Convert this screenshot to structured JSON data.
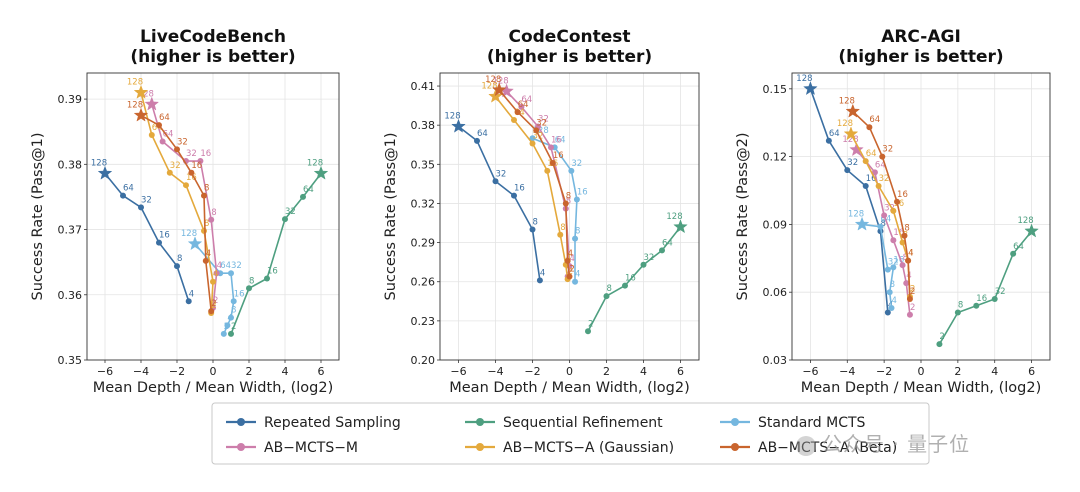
{
  "colors": {
    "repeated": "#3b6fa2",
    "sequential": "#4e9f80",
    "standard": "#75b7df",
    "abm": "#cd7eab",
    "aba_gauss": "#e4a93c",
    "aba_beta": "#c9652e"
  },
  "legend": [
    {
      "key": "repeated",
      "label": "Repeated Sampling"
    },
    {
      "key": "sequential",
      "label": "Sequential Refinement"
    },
    {
      "key": "standard",
      "label": "Standard MCTS"
    },
    {
      "key": "abm",
      "label": "AB−MCTS−M"
    },
    {
      "key": "aba_gauss",
      "label": "AB−MCTS−A (Gaussian)"
    },
    {
      "key": "aba_beta",
      "label": "AB−MCTS−A (Beta)"
    }
  ],
  "watermark": "公众号 · 量子位",
  "chart_data": [
    {
      "type": "line",
      "title": "LiveCodeBench",
      "subtitle": "(higher is better)",
      "xlabel": "Mean Depth / Mean Width, (log2)",
      "ylabel": "Success Rate (Pass@1)",
      "xlim": [
        -7,
        7
      ],
      "ylim": [
        0.35,
        0.394
      ],
      "xticks": [
        -6,
        -4,
        -2,
        0,
        2,
        4,
        6
      ],
      "yticks": [
        0.35,
        0.36,
        0.37,
        0.38,
        0.39
      ],
      "ytick_labels": [
        "0.35",
        "0.36",
        "0.37",
        "0.38",
        "0.39"
      ],
      "series": [
        {
          "key": "repeated",
          "points": [
            {
              "x": -6.0,
              "y": 0.3786,
              "label": "128",
              "star": true
            },
            {
              "x": -5.0,
              "y": 0.3752,
              "label": "64"
            },
            {
              "x": -4.0,
              "y": 0.3734,
              "label": "32"
            },
            {
              "x": -3.0,
              "y": 0.368,
              "label": "16"
            },
            {
              "x": -2.0,
              "y": 0.3644,
              "label": "8"
            },
            {
              "x": -1.35,
              "y": 0.359,
              "label": "4"
            }
          ]
        },
        {
          "key": "sequential",
          "points": [
            {
              "x": 1.0,
              "y": 0.354,
              "label": "2"
            },
            {
              "x": 2.0,
              "y": 0.361,
              "label": "8"
            },
            {
              "x": 3.0,
              "y": 0.3625,
              "label": "16"
            },
            {
              "x": 4.0,
              "y": 0.3716,
              "label": "32"
            },
            {
              "x": 5.0,
              "y": 0.375,
              "label": "64"
            },
            {
              "x": 6.0,
              "y": 0.3786,
              "label": "128",
              "star": true
            }
          ]
        },
        {
          "key": "standard",
          "points": [
            {
              "x": -1.0,
              "y": 0.3678,
              "label": "128",
              "star": true
            },
            {
              "x": 0.4,
              "y": 0.3633,
              "label": "64"
            },
            {
              "x": 1.0,
              "y": 0.3633,
              "label": "32"
            },
            {
              "x": 1.15,
              "y": 0.359,
              "label": "16"
            },
            {
              "x": 1.0,
              "y": 0.3565,
              "label": "8"
            },
            {
              "x": 0.8,
              "y": 0.3553,
              "label": "4"
            },
            {
              "x": 0.6,
              "y": 0.354,
              "label": "2"
            }
          ]
        },
        {
          "key": "abm",
          "points": [
            {
              "x": -3.4,
              "y": 0.3892,
              "label": "128",
              "star": true
            },
            {
              "x": -2.8,
              "y": 0.3835,
              "label": "64"
            },
            {
              "x": -1.5,
              "y": 0.3805,
              "label": "32"
            },
            {
              "x": -0.7,
              "y": 0.3805,
              "label": "16"
            },
            {
              "x": -0.1,
              "y": 0.3715,
              "label": "8"
            },
            {
              "x": 0.2,
              "y": 0.3633,
              "label": "4"
            },
            {
              "x": 0.0,
              "y": 0.358,
              "label": "2"
            }
          ]
        },
        {
          "key": "aba_gauss",
          "points": [
            {
              "x": -4.0,
              "y": 0.391,
              "label": "128",
              "star": true
            },
            {
              "x": -3.4,
              "y": 0.3845,
              "label": "64"
            },
            {
              "x": -2.4,
              "y": 0.3787,
              "label": "32"
            },
            {
              "x": -1.5,
              "y": 0.3768,
              "label": "16"
            },
            {
              "x": -0.5,
              "y": 0.3698,
              "label": "8"
            },
            {
              "x": 0.0,
              "y": 0.362,
              "label": "4"
            },
            {
              "x": -0.1,
              "y": 0.3572,
              "label": "2"
            }
          ]
        },
        {
          "key": "aba_beta",
          "points": [
            {
              "x": -4.0,
              "y": 0.3875,
              "label": "128",
              "star": true
            },
            {
              "x": -3.0,
              "y": 0.386,
              "label": "64"
            },
            {
              "x": -2.0,
              "y": 0.3823,
              "label": "32"
            },
            {
              "x": -1.2,
              "y": 0.3787,
              "label": "16"
            },
            {
              "x": -0.5,
              "y": 0.3752,
              "label": "8"
            },
            {
              "x": -0.4,
              "y": 0.3652,
              "label": "4"
            },
            {
              "x": -0.1,
              "y": 0.3575,
              "label": "2"
            }
          ]
        }
      ]
    },
    {
      "type": "line",
      "title": "CodeContest",
      "subtitle": "(higher is better)",
      "xlabel": "Mean Depth / Mean Width, (log2)",
      "ylabel": "Success Rate (Pass@1)",
      "xlim": [
        -7,
        7
      ],
      "ylim": [
        0.2,
        0.42
      ],
      "xticks": [
        -6,
        -4,
        -2,
        0,
        2,
        4,
        6
      ],
      "yticks": [
        0.2,
        0.23,
        0.26,
        0.29,
        0.32,
        0.35,
        0.38,
        0.41
      ],
      "ytick_labels": [
        "0.20",
        "0.23",
        "0.26",
        "0.29",
        "0.32",
        "0.35",
        "0.38",
        "0.41"
      ],
      "series": [
        {
          "key": "repeated",
          "points": [
            {
              "x": -6.0,
              "y": 0.379,
              "label": "128",
              "star": true
            },
            {
              "x": -5.0,
              "y": 0.368,
              "label": "64"
            },
            {
              "x": -4.0,
              "y": 0.337,
              "label": "32"
            },
            {
              "x": -3.0,
              "y": 0.326,
              "label": "16"
            },
            {
              "x": -2.0,
              "y": 0.3,
              "label": "8"
            },
            {
              "x": -1.6,
              "y": 0.261,
              "label": "4"
            }
          ]
        },
        {
          "key": "sequential",
          "points": [
            {
              "x": 1.0,
              "y": 0.222,
              "label": "2"
            },
            {
              "x": 2.0,
              "y": 0.249,
              "label": "8"
            },
            {
              "x": 3.0,
              "y": 0.257,
              "label": "16"
            },
            {
              "x": 4.0,
              "y": 0.273,
              "label": "32"
            },
            {
              "x": 5.0,
              "y": 0.284,
              "label": "64"
            },
            {
              "x": 6.0,
              "y": 0.302,
              "label": "128",
              "star": true
            }
          ]
        },
        {
          "key": "standard",
          "points": [
            {
              "x": -2.0,
              "y": 0.37,
              "label": "128"
            },
            {
              "x": -0.8,
              "y": 0.363,
              "label": "64"
            },
            {
              "x": 0.1,
              "y": 0.345,
              "label": "32"
            },
            {
              "x": 0.4,
              "y": 0.323,
              "label": "16"
            },
            {
              "x": 0.3,
              "y": 0.293,
              "label": "8"
            },
            {
              "x": 0.3,
              "y": 0.26,
              "label": "4"
            }
          ]
        },
        {
          "key": "abm",
          "points": [
            {
              "x": -3.4,
              "y": 0.406,
              "label": "128",
              "star": true
            },
            {
              "x": -2.6,
              "y": 0.394,
              "label": "64"
            },
            {
              "x": -1.7,
              "y": 0.379,
              "label": "32"
            },
            {
              "x": -1.0,
              "y": 0.363,
              "label": "16"
            },
            {
              "x": -0.2,
              "y": 0.316,
              "label": "8"
            },
            {
              "x": 0.0,
              "y": 0.272,
              "label": "4"
            },
            {
              "x": -0.1,
              "y": 0.264,
              "label": "2"
            }
          ]
        },
        {
          "key": "aba_gauss",
          "points": [
            {
              "x": -4.0,
              "y": 0.402,
              "label": "128",
              "star": true
            },
            {
              "x": -3.0,
              "y": 0.384,
              "label": "64"
            },
            {
              "x": -2.0,
              "y": 0.366,
              "label": "32"
            },
            {
              "x": -1.2,
              "y": 0.345,
              "label": "16"
            },
            {
              "x": -0.5,
              "y": 0.296,
              "label": "8"
            },
            {
              "x": -0.2,
              "y": 0.273,
              "label": "4"
            },
            {
              "x": -0.1,
              "y": 0.262,
              "label": "2"
            }
          ]
        },
        {
          "key": "aba_beta",
          "points": [
            {
              "x": -3.8,
              "y": 0.407,
              "label": "128",
              "star": true
            },
            {
              "x": -2.8,
              "y": 0.39,
              "label": "64"
            },
            {
              "x": -1.8,
              "y": 0.376,
              "label": "32"
            },
            {
              "x": -0.9,
              "y": 0.351,
              "label": "16"
            },
            {
              "x": -0.2,
              "y": 0.32,
              "label": "8"
            },
            {
              "x": -0.1,
              "y": 0.276,
              "label": "4"
            },
            {
              "x": 0.0,
              "y": 0.264,
              "label": "2"
            }
          ]
        }
      ]
    },
    {
      "type": "line",
      "title": "ARC-AGI",
      "subtitle": "(higher is better)",
      "xlabel": "Mean Depth / Mean Width, (log2)",
      "ylabel": "Success Rate (Pass@2)",
      "xlim": [
        -7,
        7
      ],
      "ylim": [
        0.03,
        0.157
      ],
      "xticks": [
        -6,
        -4,
        -2,
        0,
        2,
        4,
        6
      ],
      "yticks": [
        0.03,
        0.06,
        0.09,
        0.12,
        0.15
      ],
      "ytick_labels": [
        "0.03",
        "0.06",
        "0.09",
        "0.12",
        "0.15"
      ],
      "series": [
        {
          "key": "repeated",
          "points": [
            {
              "x": -6.0,
              "y": 0.15,
              "label": "128",
              "star": true
            },
            {
              "x": -5.0,
              "y": 0.127,
              "label": "64"
            },
            {
              "x": -4.0,
              "y": 0.114,
              "label": "32"
            },
            {
              "x": -3.0,
              "y": 0.107,
              "label": "16"
            },
            {
              "x": -2.2,
              "y": 0.087,
              "label": "8"
            },
            {
              "x": -1.8,
              "y": 0.051,
              "label": "4"
            }
          ]
        },
        {
          "key": "sequential",
          "points": [
            {
              "x": 1.0,
              "y": 0.037,
              "label": "2"
            },
            {
              "x": 2.0,
              "y": 0.051,
              "label": "8"
            },
            {
              "x": 3.0,
              "y": 0.054,
              "label": "16"
            },
            {
              "x": 4.0,
              "y": 0.057,
              "label": "32"
            },
            {
              "x": 5.0,
              "y": 0.077,
              "label": "64"
            },
            {
              "x": 6.0,
              "y": 0.087,
              "label": "128",
              "star": true
            }
          ]
        },
        {
          "key": "standard",
          "points": [
            {
              "x": -3.2,
              "y": 0.09,
              "label": "128",
              "star": true
            },
            {
              "x": -2.2,
              "y": 0.089,
              "label": "64"
            },
            {
              "x": -1.8,
              "y": 0.07,
              "label": "32"
            },
            {
              "x": -1.5,
              "y": 0.071,
              "label": "16"
            },
            {
              "x": -1.7,
              "y": 0.06,
              "label": "8"
            },
            {
              "x": -1.6,
              "y": 0.053,
              "label": "4"
            }
          ]
        },
        {
          "key": "abm",
          "points": [
            {
              "x": -3.5,
              "y": 0.123,
              "label": "128",
              "star": true
            },
            {
              "x": -2.5,
              "y": 0.113,
              "label": "64"
            },
            {
              "x": -2.0,
              "y": 0.094,
              "label": "32"
            },
            {
              "x": -1.5,
              "y": 0.083,
              "label": "16"
            },
            {
              "x": -1.0,
              "y": 0.072,
              "label": "8"
            },
            {
              "x": -0.8,
              "y": 0.064,
              "label": "4"
            },
            {
              "x": -0.6,
              "y": 0.05,
              "label": "2"
            }
          ]
        },
        {
          "key": "aba_gauss",
          "points": [
            {
              "x": -3.8,
              "y": 0.13,
              "label": "128",
              "star": true
            },
            {
              "x": -3.0,
              "y": 0.118,
              "label": "64"
            },
            {
              "x": -2.3,
              "y": 0.107,
              "label": "32"
            },
            {
              "x": -1.5,
              "y": 0.096,
              "label": "16"
            },
            {
              "x": -1.0,
              "y": 0.082,
              "label": "8"
            },
            {
              "x": -0.7,
              "y": 0.074,
              "label": "4"
            },
            {
              "x": -0.6,
              "y": 0.058,
              "label": "2"
            }
          ]
        },
        {
          "key": "aba_beta",
          "points": [
            {
              "x": -3.7,
              "y": 0.14,
              "label": "128",
              "star": true
            },
            {
              "x": -2.8,
              "y": 0.133,
              "label": "64"
            },
            {
              "x": -2.1,
              "y": 0.12,
              "label": "32"
            },
            {
              "x": -1.3,
              "y": 0.1,
              "label": "16"
            },
            {
              "x": -0.9,
              "y": 0.085,
              "label": "8"
            },
            {
              "x": -0.7,
              "y": 0.074,
              "label": "4"
            },
            {
              "x": -0.6,
              "y": 0.057,
              "label": "2"
            }
          ]
        }
      ]
    }
  ]
}
